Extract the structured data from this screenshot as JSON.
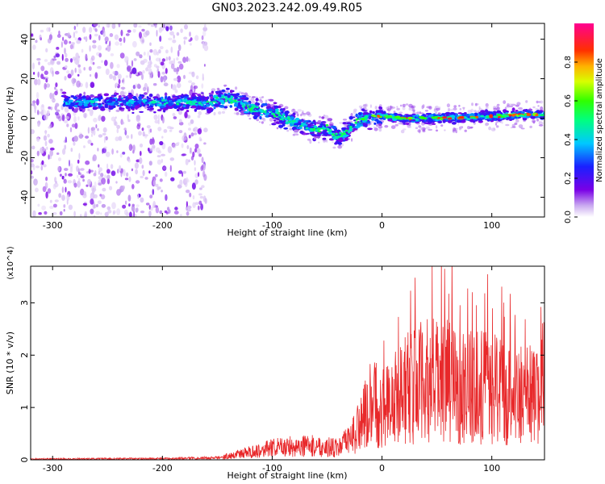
{
  "title": "GN03.2023.242.09.49.R05",
  "colors": {
    "snr_line": "#e8282a",
    "spectrogram_low": "#7a00e6",
    "spectrogram_high": "#ff0044"
  },
  "chart_data": [
    {
      "type": "heatmap",
      "xlabel": "Height of straight line (km)",
      "ylabel": "Frequency (Hz)",
      "xlim": [
        -320,
        148
      ],
      "ylim": [
        -50,
        48
      ],
      "xticks": [
        -300,
        -200,
        -100,
        0,
        100
      ],
      "yticks": [
        -40,
        -20,
        0,
        20,
        40
      ],
      "grid": false,
      "colorbar": {
        "label": "Normalized spectral amplitude",
        "range": [
          0,
          1
        ],
        "ticks": [
          "0.0",
          "0.2",
          "0.4",
          "0.6",
          "0.8"
        ],
        "colormap": "rainbow (purple-blue-cyan-green-yellow-orange-red-magenta)"
      },
      "ridge": {
        "description": "peak spectral energy frequency vs height",
        "x": [
          -280,
          -240,
          -200,
          -160,
          -140,
          -120,
          -100,
          -80,
          -60,
          -50,
          -40,
          -30,
          -20,
          -10,
          0,
          20,
          40,
          60,
          80,
          100,
          120,
          148
        ],
        "y": [
          8,
          8,
          8,
          8,
          10,
          5,
          3,
          -2,
          -6,
          -5,
          -10,
          -5,
          -1,
          1,
          1,
          0,
          0,
          0,
          0.5,
          1,
          1.5,
          2
        ]
      },
      "broadband_noise_x_range": [
        -320,
        -160
      ]
    },
    {
      "type": "line",
      "xlabel": "Height of straight line (km)",
      "ylabel": "SNR (10 * v/v)",
      "y_multiplier": "(x10^4)",
      "xlim": [
        -320,
        148
      ],
      "ylim": [
        0,
        3.7
      ],
      "xticks": [
        -300,
        -200,
        -100,
        0,
        100
      ],
      "yticks": [
        0,
        1,
        2,
        3
      ],
      "grid": false,
      "series": [
        {
          "envelope_x": [
            -320,
            -200,
            -150,
            -120,
            -100,
            -80,
            -60,
            -40,
            -30,
            -20,
            -10,
            0,
            10,
            20,
            40,
            60,
            80,
            100,
            120,
            148
          ],
          "envelope_y": [
            0.02,
            0.03,
            0.05,
            0.2,
            0.3,
            0.35,
            0.35,
            0.3,
            0.5,
            0.9,
            1.4,
            1.4,
            1.5,
            1.8,
            2.0,
            2.0,
            1.9,
            1.8,
            1.7,
            1.6
          ],
          "peak_y": 3.65,
          "peak_x": 57
        }
      ]
    }
  ]
}
